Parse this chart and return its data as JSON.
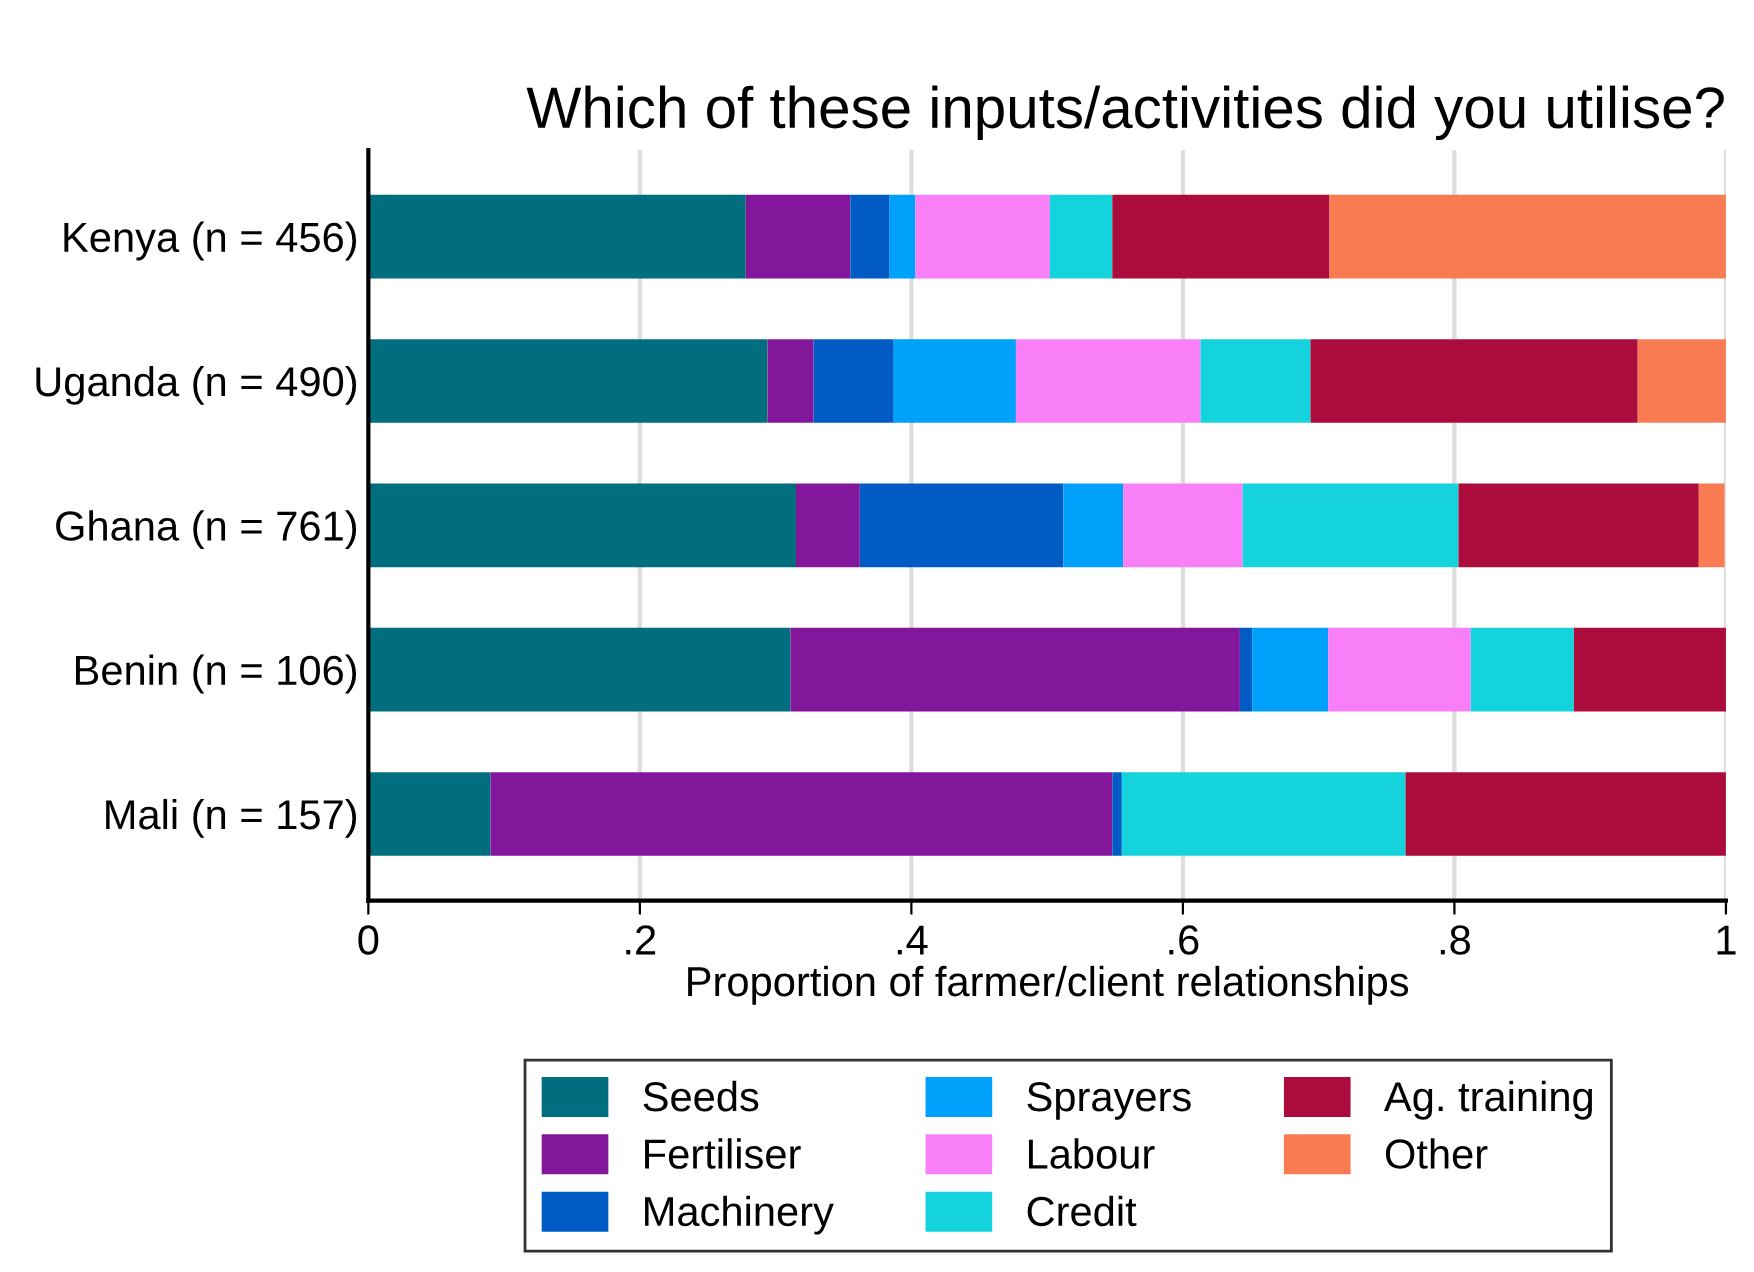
{
  "chart_data": {
    "type": "bar",
    "orientation": "horizontal",
    "stacked": true,
    "title": "Which of these inputs/activities did you utilise?",
    "xlabel": "Proportion of farmer/client relationships",
    "categories": [
      "Kenya (n = 456)",
      "Uganda (n = 490)",
      "Ghana (n = 761)",
      "Benin (n = 106)",
      "Mali (n = 157)"
    ],
    "series": [
      {
        "name": "Seeds",
        "color": "#006e7f",
        "values": [
          0.278,
          0.294,
          0.315,
          0.311,
          0.09
        ]
      },
      {
        "name": "Fertiliser",
        "color": "#83179b",
        "values": [
          0.077,
          0.034,
          0.047,
          0.331,
          0.458
        ]
      },
      {
        "name": "Machinery",
        "color": "#005bc5",
        "values": [
          0.029,
          0.059,
          0.15,
          0.009,
          0.007
        ]
      },
      {
        "name": "Sprayers",
        "color": "#00a1fb",
        "values": [
          0.019,
          0.09,
          0.044,
          0.056,
          0
        ]
      },
      {
        "name": "Labour",
        "color": "#f97ff8",
        "values": [
          0.099,
          0.136,
          0.088,
          0.105,
          0
        ]
      },
      {
        "name": "Credit",
        "color": "#15d3dc",
        "values": [
          0.046,
          0.081,
          0.159,
          0.076,
          0.209
        ]
      },
      {
        "name": "Ag. training",
        "color": "#ab0c3b",
        "values": [
          0.16,
          0.241,
          0.177,
          0.113,
          0.236
        ]
      },
      {
        "name": "Other",
        "color": "#f97b52",
        "values": [
          0.292,
          0.065,
          0.019,
          0,
          0
        ]
      }
    ],
    "xlim": [
      0,
      1
    ],
    "xticks": [
      0,
      {
        "value": 0.2,
        "label": ".2"
      },
      {
        "value": 0.4,
        "label": ".4"
      },
      {
        "value": 0.6,
        "label": ".6"
      },
      {
        "value": 0.8,
        "label": ".8"
      },
      1
    ],
    "grid": "x",
    "legend": "bottom"
  }
}
